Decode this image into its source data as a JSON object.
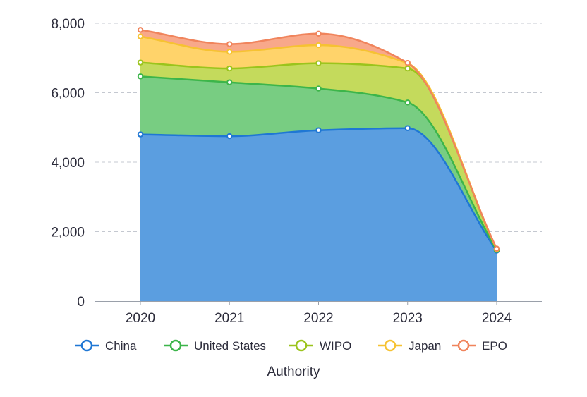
{
  "chart_data": {
    "type": "area",
    "stacked": true,
    "categories": [
      "2020",
      "2021",
      "2022",
      "2023",
      "2024"
    ],
    "ylim": [
      0,
      8000
    ],
    "yticks": [
      "0",
      "2,000",
      "4,000",
      "6,000",
      "8,000"
    ],
    "ytick_values": [
      0,
      2000,
      4000,
      6000,
      8000
    ],
    "xlabel": "Authority",
    "ylabel": "",
    "grid": true,
    "legend": "bottom",
    "series": [
      {
        "name": "China",
        "values": [
          4800,
          4750,
          4920,
          4980,
          1450
        ],
        "line_color": "#1f77d4",
        "fill_color": "#5b9ee0"
      },
      {
        "name": "United States",
        "values": [
          1670,
          1550,
          1200,
          740,
          20
        ],
        "line_color": "#3cb54a",
        "fill_color": "#78cd82"
      },
      {
        "name": "WIPO",
        "values": [
          400,
          400,
          730,
          980,
          20
        ],
        "line_color": "#9bc41c",
        "fill_color": "#c4da5c"
      },
      {
        "name": "Japan",
        "values": [
          750,
          480,
          520,
          150,
          10
        ],
        "line_color": "#f6c232",
        "fill_color": "#ffd36a"
      },
      {
        "name": "EPO",
        "values": [
          190,
          220,
          330,
          10,
          10
        ],
        "line_color": "#f0845c",
        "fill_color": "#f8a88a"
      }
    ]
  }
}
